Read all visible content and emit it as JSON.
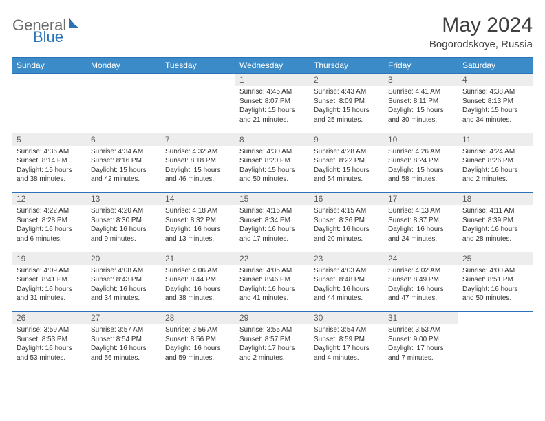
{
  "logo": {
    "word1": "General",
    "word2": "Blue"
  },
  "title": "May 2024",
  "location": "Bogorodskoye, Russia",
  "colors": {
    "header_bg": "#3b8bc9",
    "header_border": "#2a73b8",
    "daynum_bg": "#ededed",
    "text": "#333333",
    "logo_gray": "#6b6b6b",
    "logo_blue": "#2a73b8"
  },
  "weekdays": [
    "Sunday",
    "Monday",
    "Tuesday",
    "Wednesday",
    "Thursday",
    "Friday",
    "Saturday"
  ],
  "weeks": [
    [
      null,
      null,
      null,
      {
        "n": "1",
        "sr": "4:45 AM",
        "ss": "8:07 PM",
        "dl": "15 hours and 21 minutes."
      },
      {
        "n": "2",
        "sr": "4:43 AM",
        "ss": "8:09 PM",
        "dl": "15 hours and 25 minutes."
      },
      {
        "n": "3",
        "sr": "4:41 AM",
        "ss": "8:11 PM",
        "dl": "15 hours and 30 minutes."
      },
      {
        "n": "4",
        "sr": "4:38 AM",
        "ss": "8:13 PM",
        "dl": "15 hours and 34 minutes."
      }
    ],
    [
      {
        "n": "5",
        "sr": "4:36 AM",
        "ss": "8:14 PM",
        "dl": "15 hours and 38 minutes."
      },
      {
        "n": "6",
        "sr": "4:34 AM",
        "ss": "8:16 PM",
        "dl": "15 hours and 42 minutes."
      },
      {
        "n": "7",
        "sr": "4:32 AM",
        "ss": "8:18 PM",
        "dl": "15 hours and 46 minutes."
      },
      {
        "n": "8",
        "sr": "4:30 AM",
        "ss": "8:20 PM",
        "dl": "15 hours and 50 minutes."
      },
      {
        "n": "9",
        "sr": "4:28 AM",
        "ss": "8:22 PM",
        "dl": "15 hours and 54 minutes."
      },
      {
        "n": "10",
        "sr": "4:26 AM",
        "ss": "8:24 PM",
        "dl": "15 hours and 58 minutes."
      },
      {
        "n": "11",
        "sr": "4:24 AM",
        "ss": "8:26 PM",
        "dl": "16 hours and 2 minutes."
      }
    ],
    [
      {
        "n": "12",
        "sr": "4:22 AM",
        "ss": "8:28 PM",
        "dl": "16 hours and 6 minutes."
      },
      {
        "n": "13",
        "sr": "4:20 AM",
        "ss": "8:30 PM",
        "dl": "16 hours and 9 minutes."
      },
      {
        "n": "14",
        "sr": "4:18 AM",
        "ss": "8:32 PM",
        "dl": "16 hours and 13 minutes."
      },
      {
        "n": "15",
        "sr": "4:16 AM",
        "ss": "8:34 PM",
        "dl": "16 hours and 17 minutes."
      },
      {
        "n": "16",
        "sr": "4:15 AM",
        "ss": "8:36 PM",
        "dl": "16 hours and 20 minutes."
      },
      {
        "n": "17",
        "sr": "4:13 AM",
        "ss": "8:37 PM",
        "dl": "16 hours and 24 minutes."
      },
      {
        "n": "18",
        "sr": "4:11 AM",
        "ss": "8:39 PM",
        "dl": "16 hours and 28 minutes."
      }
    ],
    [
      {
        "n": "19",
        "sr": "4:09 AM",
        "ss": "8:41 PM",
        "dl": "16 hours and 31 minutes."
      },
      {
        "n": "20",
        "sr": "4:08 AM",
        "ss": "8:43 PM",
        "dl": "16 hours and 34 minutes."
      },
      {
        "n": "21",
        "sr": "4:06 AM",
        "ss": "8:44 PM",
        "dl": "16 hours and 38 minutes."
      },
      {
        "n": "22",
        "sr": "4:05 AM",
        "ss": "8:46 PM",
        "dl": "16 hours and 41 minutes."
      },
      {
        "n": "23",
        "sr": "4:03 AM",
        "ss": "8:48 PM",
        "dl": "16 hours and 44 minutes."
      },
      {
        "n": "24",
        "sr": "4:02 AM",
        "ss": "8:49 PM",
        "dl": "16 hours and 47 minutes."
      },
      {
        "n": "25",
        "sr": "4:00 AM",
        "ss": "8:51 PM",
        "dl": "16 hours and 50 minutes."
      }
    ],
    [
      {
        "n": "26",
        "sr": "3:59 AM",
        "ss": "8:53 PM",
        "dl": "16 hours and 53 minutes."
      },
      {
        "n": "27",
        "sr": "3:57 AM",
        "ss": "8:54 PM",
        "dl": "16 hours and 56 minutes."
      },
      {
        "n": "28",
        "sr": "3:56 AM",
        "ss": "8:56 PM",
        "dl": "16 hours and 59 minutes."
      },
      {
        "n": "29",
        "sr": "3:55 AM",
        "ss": "8:57 PM",
        "dl": "17 hours and 2 minutes."
      },
      {
        "n": "30",
        "sr": "3:54 AM",
        "ss": "8:59 PM",
        "dl": "17 hours and 4 minutes."
      },
      {
        "n": "31",
        "sr": "3:53 AM",
        "ss": "9:00 PM",
        "dl": "17 hours and 7 minutes."
      },
      null
    ]
  ],
  "labels": {
    "sunrise": "Sunrise:",
    "sunset": "Sunset:",
    "daylight": "Daylight:"
  }
}
